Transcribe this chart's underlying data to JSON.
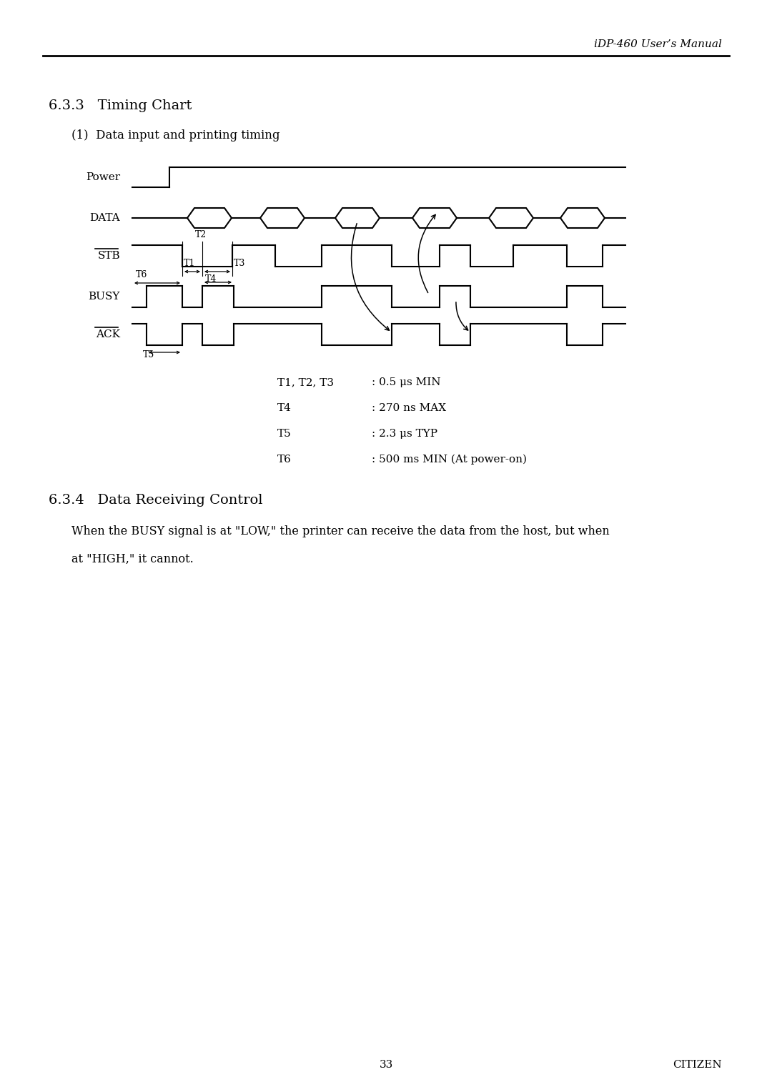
{
  "page_title": "iDP-460 User’s Manual",
  "section_title": "6.3.3   Timing Chart",
  "subtitle": "(1)  Data input and printing timing",
  "section2_title": "6.3.4   Data Receiving Control",
  "section2_body1": "When the BUSY signal is at \"LOW,\" the printer can receive the data from the host, but when",
  "section2_body2": "at \"HIGH,\" it cannot.",
  "timing_labels": [
    "T1, T2, T3",
    "T4",
    "T5",
    "T6"
  ],
  "timing_values": [
    ": 0.5 μs MIN",
    ": 270 ns MAX",
    ": 2.3 μs TYP",
    ": 500 ms MIN (At power-on)"
  ],
  "signal_labels": [
    "Power",
    "DATA",
    "STB",
    "BUSY",
    "ACK"
  ],
  "page_number": "33",
  "footer_right": "CITIZEN",
  "bg_color": "#ffffff",
  "line_color": "#000000",
  "font_color": "#000000"
}
